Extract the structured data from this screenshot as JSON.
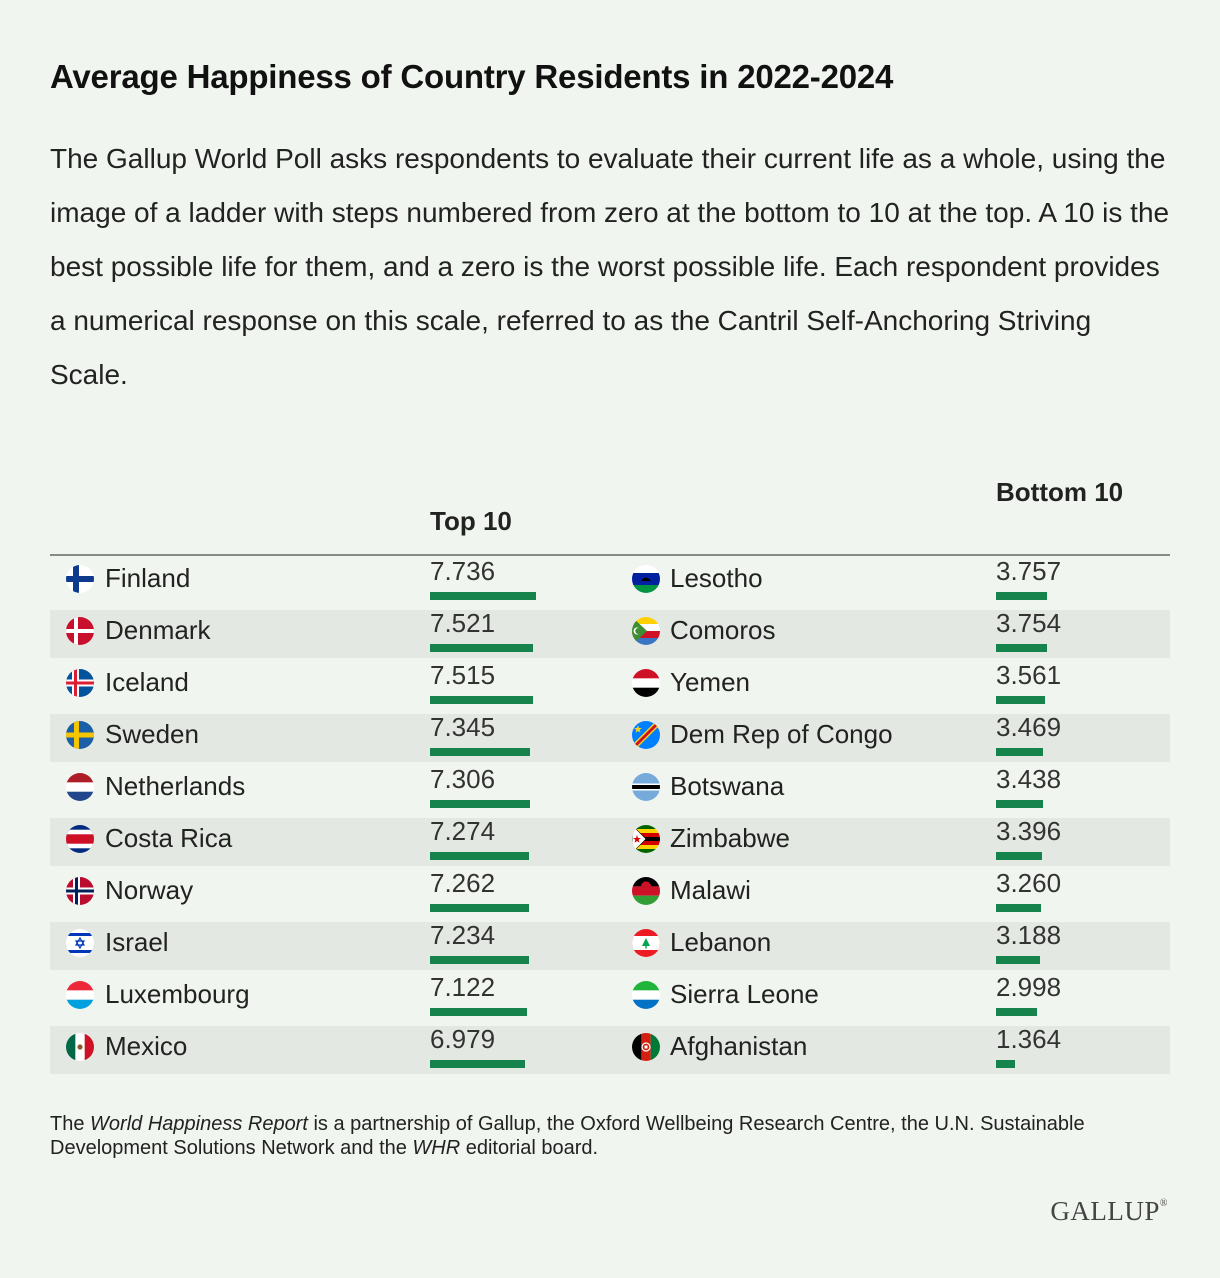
{
  "title": "Average Happiness of Country Residents in 2022-2024",
  "description": "The Gallup World Poll asks respondents to evaluate their current life as a whole, using the image of a ladder with steps numbered from zero at the bottom to 10 at the top. A 10 is the best possible life for them, and a zero is the worst possible life. Each respondent provides a numerical response on this scale, referred to as the Cantril Self-Anchoring Striving Scale.",
  "footnote": {
    "part1": "The ",
    "italic1": "World Happiness Report",
    "part2": " is a partnership of Gallup, the Oxford Wellbeing Research Centre, the U.N. Sustainable Development Solutions Network and the ",
    "italic2": "WHR",
    "part3": " editorial board."
  },
  "logo": "GALLUP",
  "logo_mark": "®",
  "colors": {
    "bar": "#16824c",
    "background": "#f1f5ef",
    "shade": "#e4e8e2"
  },
  "chart_data": {
    "type": "table",
    "title": "Average Happiness of Country Residents in 2022-2024",
    "scale_max": 10,
    "columns": [
      {
        "header": "Top 10",
        "rows": [
          {
            "country": "Finland",
            "flag": "finland-flag-icon",
            "value": 7.736
          },
          {
            "country": "Denmark",
            "flag": "denmark-flag-icon",
            "value": 7.521
          },
          {
            "country": "Iceland",
            "flag": "iceland-flag-icon",
            "value": 7.515
          },
          {
            "country": "Sweden",
            "flag": "sweden-flag-icon",
            "value": 7.345
          },
          {
            "country": "Netherlands",
            "flag": "netherlands-flag-icon",
            "value": 7.306
          },
          {
            "country": "Costa Rica",
            "flag": "costa-rica-flag-icon",
            "value": 7.274
          },
          {
            "country": "Norway",
            "flag": "norway-flag-icon",
            "value": 7.262
          },
          {
            "country": "Israel",
            "flag": "israel-flag-icon",
            "value": 7.234
          },
          {
            "country": "Luxembourg",
            "flag": "luxembourg-flag-icon",
            "value": 7.122
          },
          {
            "country": "Mexico",
            "flag": "mexico-flag-icon",
            "value": 6.979
          }
        ]
      },
      {
        "header": "Bottom 10",
        "rows": [
          {
            "country": "Lesotho",
            "flag": "lesotho-flag-icon",
            "value": 3.757
          },
          {
            "country": "Comoros",
            "flag": "comoros-flag-icon",
            "value": 3.754
          },
          {
            "country": "Yemen",
            "flag": "yemen-flag-icon",
            "value": 3.561
          },
          {
            "country": "Dem Rep of Congo",
            "flag": "dr-congo-flag-icon",
            "value": 3.469
          },
          {
            "country": "Botswana",
            "flag": "botswana-flag-icon",
            "value": 3.438
          },
          {
            "country": "Zimbabwe",
            "flag": "zimbabwe-flag-icon",
            "value": 3.396
          },
          {
            "country": "Malawi",
            "flag": "malawi-flag-icon",
            "value": 3.26
          },
          {
            "country": "Lebanon",
            "flag": "lebanon-flag-icon",
            "value": 3.188
          },
          {
            "country": "Sierra Leone",
            "flag": "sierra-leone-flag-icon",
            "value": 2.998
          },
          {
            "country": "Afghanistan",
            "flag": "afghanistan-flag-icon",
            "value": 1.364
          }
        ]
      }
    ]
  }
}
